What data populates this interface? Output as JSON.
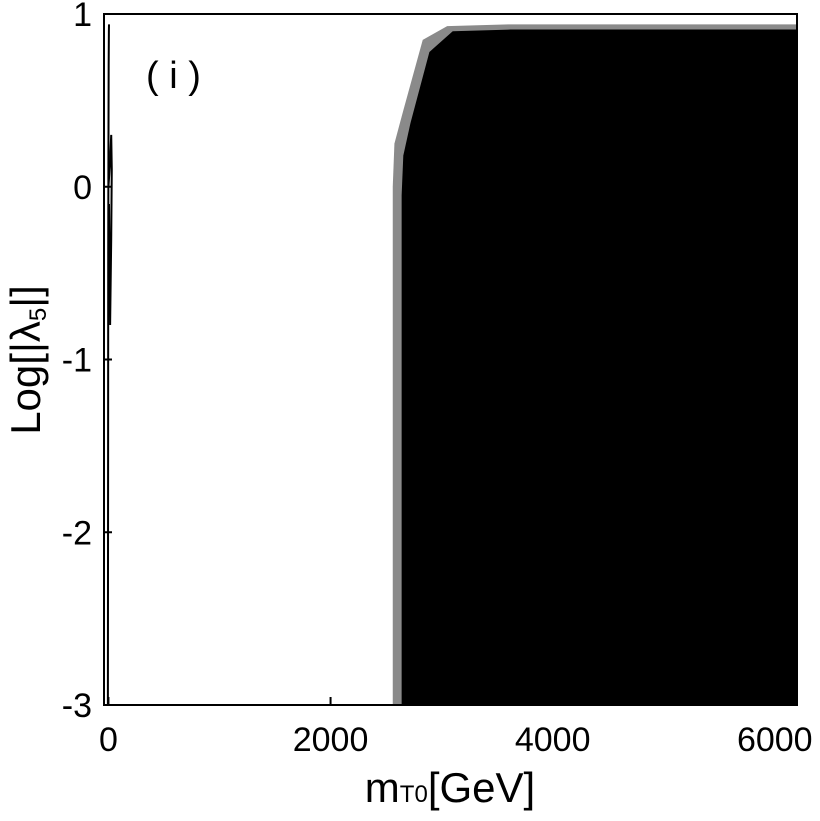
{
  "chart_data": {
    "type": "area",
    "panel_label": "( i )",
    "xlabel_main": "m",
    "xlabel_sub": "T0",
    "xlabel_unit": "[GeV]",
    "ylabel_prefix": "Log[|λ",
    "ylabel_sub": "5",
    "ylabel_suffix": "|]",
    "xlim": [
      -40,
      6200
    ],
    "ylim": [
      -3,
      1
    ],
    "x_ticks": [
      {
        "value": 0,
        "label": "0"
      },
      {
        "value": 2000,
        "label": "2000"
      },
      {
        "value": 4000,
        "label": "4000"
      },
      {
        "value": 6000,
        "label": "6000"
      }
    ],
    "y_ticks": [
      {
        "value": -3,
        "label": "-3"
      },
      {
        "value": -2,
        "label": "-2"
      },
      {
        "value": -1,
        "label": "-1"
      },
      {
        "value": 0,
        "label": "0"
      },
      {
        "value": 1,
        "label": "1"
      }
    ],
    "regions": [
      {
        "name": "gray band",
        "color": "#8a8a8a",
        "x": [
          2560,
          2560,
          2575,
          2650,
          2830,
          3050,
          3600,
          6200,
          6200
        ],
        "y": [
          -3,
          0.0,
          0.25,
          0.43,
          0.85,
          0.93,
          0.94,
          0.94,
          -3
        ]
      },
      {
        "name": "black region",
        "color": "#000000",
        "x": [
          2640,
          2640,
          2655,
          2720,
          2890,
          3100,
          3620,
          6200,
          6200
        ],
        "y": [
          -3,
          -0.05,
          0.18,
          0.37,
          0.78,
          0.9,
          0.91,
          0.91,
          -3
        ]
      }
    ],
    "boundary_curves": [
      {
        "name": "left edge curve",
        "color": "#000000",
        "x": [
          -5,
          -3,
          -2,
          0,
          2,
          4,
          5
        ],
        "y": [
          -3,
          -1.5,
          -0.4,
          0.2,
          0.7,
          0.9,
          0.94
        ]
      },
      {
        "name": "left edge contour",
        "color": "#000000",
        "x": [
          0,
          15,
          25,
          30,
          25,
          15,
          5
        ],
        "y": [
          0.0,
          0.15,
          0.3,
          0.1,
          -0.3,
          -0.8,
          -0.1
        ]
      }
    ]
  }
}
